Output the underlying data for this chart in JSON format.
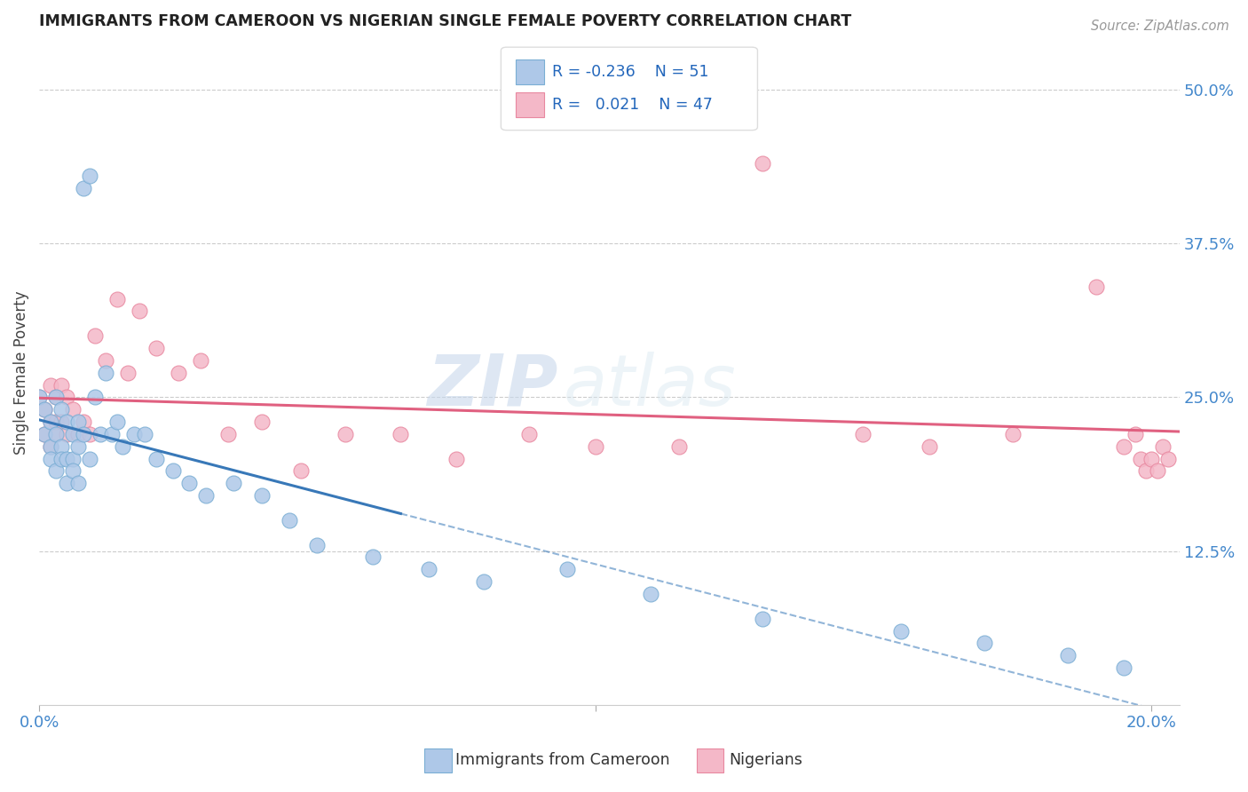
{
  "title": "IMMIGRANTS FROM CAMEROON VS NIGERIAN SINGLE FEMALE POVERTY CORRELATION CHART",
  "source": "Source: ZipAtlas.com",
  "ylabel": "Single Female Poverty",
  "right_yticks": [
    0.125,
    0.25,
    0.375,
    0.5
  ],
  "right_yticklabels": [
    "12.5%",
    "25.0%",
    "37.5%",
    "50.0%"
  ],
  "legend_label1": "Immigrants from Cameroon",
  "legend_label2": "Nigerians",
  "blue_color": "#aec8e8",
  "blue_edge": "#7aaed4",
  "pink_color": "#f4b8c8",
  "pink_edge": "#e888a0",
  "trend_blue": "#3878b8",
  "trend_pink": "#e06080",
  "watermark_zip": "ZIP",
  "watermark_atlas": "atlas",
  "blue_x": [
    0.0,
    0.001,
    0.001,
    0.002,
    0.002,
    0.002,
    0.003,
    0.003,
    0.003,
    0.004,
    0.004,
    0.004,
    0.005,
    0.005,
    0.005,
    0.006,
    0.006,
    0.006,
    0.007,
    0.007,
    0.007,
    0.008,
    0.008,
    0.009,
    0.009,
    0.01,
    0.011,
    0.012,
    0.013,
    0.014,
    0.015,
    0.017,
    0.019,
    0.021,
    0.024,
    0.027,
    0.03,
    0.035,
    0.04,
    0.045,
    0.05,
    0.06,
    0.07,
    0.08,
    0.095,
    0.11,
    0.13,
    0.155,
    0.17,
    0.185,
    0.195
  ],
  "blue_y": [
    0.25,
    0.24,
    0.22,
    0.23,
    0.21,
    0.2,
    0.25,
    0.22,
    0.19,
    0.24,
    0.21,
    0.2,
    0.23,
    0.2,
    0.18,
    0.22,
    0.2,
    0.19,
    0.23,
    0.21,
    0.18,
    0.42,
    0.22,
    0.43,
    0.2,
    0.25,
    0.22,
    0.27,
    0.22,
    0.23,
    0.21,
    0.22,
    0.22,
    0.2,
    0.19,
    0.18,
    0.17,
    0.18,
    0.17,
    0.15,
    0.13,
    0.12,
    0.11,
    0.1,
    0.11,
    0.09,
    0.07,
    0.06,
    0.05,
    0.04,
    0.03
  ],
  "pink_x": [
    0.0,
    0.001,
    0.001,
    0.002,
    0.002,
    0.002,
    0.003,
    0.003,
    0.003,
    0.004,
    0.004,
    0.005,
    0.005,
    0.006,
    0.007,
    0.008,
    0.009,
    0.01,
    0.012,
    0.014,
    0.016,
    0.018,
    0.021,
    0.025,
    0.029,
    0.034,
    0.04,
    0.047,
    0.055,
    0.065,
    0.075,
    0.088,
    0.1,
    0.115,
    0.13,
    0.148,
    0.16,
    0.175,
    0.19,
    0.195,
    0.197,
    0.198,
    0.199,
    0.2,
    0.201,
    0.202,
    0.203
  ],
  "pink_y": [
    0.25,
    0.24,
    0.22,
    0.26,
    0.23,
    0.21,
    0.25,
    0.23,
    0.22,
    0.26,
    0.23,
    0.25,
    0.22,
    0.24,
    0.22,
    0.23,
    0.22,
    0.3,
    0.28,
    0.33,
    0.27,
    0.32,
    0.29,
    0.27,
    0.28,
    0.22,
    0.23,
    0.19,
    0.22,
    0.22,
    0.2,
    0.22,
    0.21,
    0.21,
    0.44,
    0.22,
    0.21,
    0.22,
    0.34,
    0.21,
    0.22,
    0.2,
    0.19,
    0.2,
    0.19,
    0.21,
    0.2
  ],
  "xlim": [
    0.0,
    0.205
  ],
  "ylim": [
    0.0,
    0.54
  ],
  "grid_yticks": [
    0.125,
    0.25,
    0.375,
    0.5
  ],
  "figsize": [
    14.06,
    8.92
  ],
  "dpi": 100
}
